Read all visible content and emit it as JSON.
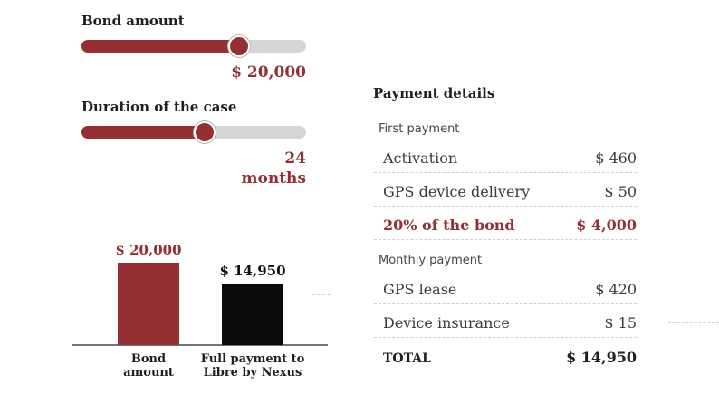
{
  "controls": {
    "bond_amount": {
      "label": "Bond amount",
      "value_text": "$ 20,000",
      "level": 0.7
    },
    "duration": {
      "label": "Duration of the case",
      "value_line1": "24",
      "value_line2": "months",
      "level": 0.55
    }
  },
  "colors": {
    "accent": "#943034",
    "track": "#d6d6d6",
    "dark": "#0b0b0b"
  },
  "chart_data": {
    "type": "bar",
    "categories": [
      [
        "Bond",
        "amount"
      ],
      [
        "Full payment to",
        "Libre by Nexus"
      ]
    ],
    "values": [
      20000,
      14950
    ],
    "value_labels": [
      "$ 20,000",
      "$ 14,950"
    ],
    "colors": [
      "#943034",
      "#0b0b0b"
    ],
    "value_label_colors": [
      "#943034",
      "#111111"
    ],
    "ylim": [
      0,
      20000
    ]
  },
  "payment_details": {
    "title": "Payment details",
    "first_payment_label": "First payment",
    "first_rows": [
      {
        "name": "Activation",
        "amount": "$ 460"
      },
      {
        "name": "GPS device delivery",
        "amount": "$ 50"
      },
      {
        "name": "20% of the bond",
        "amount": "$ 4,000"
      }
    ],
    "monthly_payment_label": "Monthly payment",
    "monthly_rows": [
      {
        "name": "GPS lease",
        "amount": "$ 420"
      },
      {
        "name": "Device insurance",
        "amount": "$ 15"
      }
    ],
    "total": {
      "name": "TOTAL",
      "amount": "$ 14,950"
    }
  }
}
